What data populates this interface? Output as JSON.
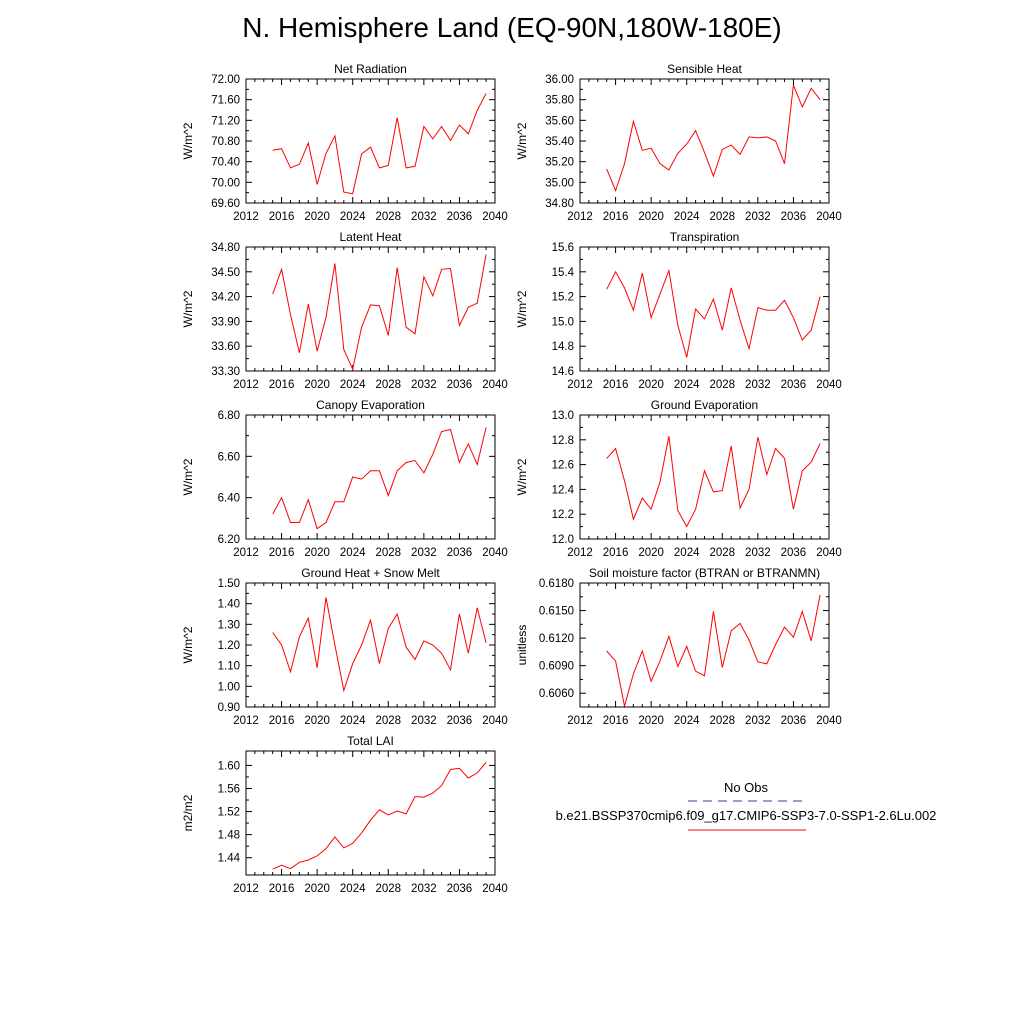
{
  "figure": {
    "title": "N. Hemisphere Land (EQ-90N,180W-180E)"
  },
  "legend": {
    "obs_label": "No Obs",
    "model_label": "b.e21.BSSP370cmip6.f09_g17.CMIP6-SSP3-7.0-SSP1-2.6Lu.002",
    "obs_color": "#3a3aa0",
    "model_color": "#ff0000"
  },
  "chart_data": [
    {
      "type": "line",
      "title": "Net Radiation",
      "ylabel": "W/m^2",
      "xlim": [
        2012,
        2040
      ],
      "ylim": [
        69.6,
        72.0
      ],
      "xticks": [
        "2012",
        "2016",
        "2020",
        "2024",
        "2028",
        "2032",
        "2036",
        "2040"
      ],
      "yticks": [
        "69.60",
        "70.00",
        "70.40",
        "70.80",
        "71.20",
        "71.60",
        "72.00"
      ],
      "x": [
        2015,
        2016,
        2017,
        2018,
        2019,
        2020,
        2021,
        2022,
        2023,
        2024,
        2025,
        2026,
        2027,
        2028,
        2029,
        2030,
        2031,
        2032,
        2033,
        2034,
        2035,
        2036,
        2037,
        2038,
        2039
      ],
      "series": [
        {
          "values": [
            70.62,
            70.65,
            70.28,
            70.35,
            70.76,
            69.96,
            70.56,
            70.9,
            69.81,
            69.78,
            70.55,
            70.68,
            70.28,
            70.33,
            71.25,
            70.28,
            70.31,
            71.08,
            70.84,
            71.08,
            70.81,
            71.11,
            70.94,
            71.39,
            71.72
          ]
        }
      ]
    },
    {
      "type": "line",
      "title": "Sensible Heat",
      "ylabel": "W/m^2",
      "xlim": [
        2012,
        2040
      ],
      "ylim": [
        34.8,
        36.0
      ],
      "xticks": [
        "2012",
        "2016",
        "2020",
        "2024",
        "2028",
        "2032",
        "2036",
        "2040"
      ],
      "yticks": [
        "34.80",
        "35.00",
        "35.20",
        "35.40",
        "35.60",
        "35.80",
        "36.00"
      ],
      "x": [
        2015,
        2016,
        2017,
        2018,
        2019,
        2020,
        2021,
        2022,
        2023,
        2024,
        2025,
        2026,
        2027,
        2028,
        2029,
        2030,
        2031,
        2032,
        2033,
        2034,
        2035,
        2036,
        2037,
        2038,
        2039
      ],
      "series": [
        {
          "values": [
            35.13,
            34.92,
            35.18,
            35.59,
            35.31,
            35.33,
            35.18,
            35.12,
            35.28,
            35.37,
            35.5,
            35.29,
            35.06,
            35.32,
            35.36,
            35.27,
            35.44,
            35.43,
            35.44,
            35.4,
            35.18,
            35.94,
            35.73,
            35.91,
            35.8
          ]
        }
      ]
    },
    {
      "type": "line",
      "title": "Latent Heat",
      "ylabel": "W/m^2",
      "xlim": [
        2012,
        2040
      ],
      "ylim": [
        33.3,
        34.8
      ],
      "xticks": [
        "2012",
        "2016",
        "2020",
        "2024",
        "2028",
        "2032",
        "2036",
        "2040"
      ],
      "yticks": [
        "33.30",
        "33.60",
        "33.90",
        "34.20",
        "34.50",
        "34.80"
      ],
      "x": [
        2015,
        2016,
        2017,
        2018,
        2019,
        2020,
        2021,
        2022,
        2023,
        2024,
        2025,
        2026,
        2027,
        2028,
        2029,
        2030,
        2031,
        2032,
        2033,
        2034,
        2035,
        2036,
        2037,
        2038,
        2039
      ],
      "series": [
        {
          "values": [
            34.23,
            34.53,
            33.98,
            33.52,
            34.11,
            33.54,
            33.95,
            34.6,
            33.56,
            33.32,
            33.83,
            34.1,
            34.09,
            33.73,
            34.55,
            33.83,
            33.75,
            34.44,
            34.21,
            34.53,
            34.54,
            33.85,
            34.07,
            34.12,
            34.71
          ]
        }
      ]
    },
    {
      "type": "line",
      "title": "Transpiration",
      "ylabel": "W/m^2",
      "xlim": [
        2012,
        2040
      ],
      "ylim": [
        14.6,
        15.6
      ],
      "xticks": [
        "2012",
        "2016",
        "2020",
        "2024",
        "2028",
        "2032",
        "2036",
        "2040"
      ],
      "yticks": [
        "14.6",
        "14.8",
        "15.0",
        "15.2",
        "15.4",
        "15.6"
      ],
      "x": [
        2015,
        2016,
        2017,
        2018,
        2019,
        2020,
        2021,
        2022,
        2023,
        2024,
        2025,
        2026,
        2027,
        2028,
        2029,
        2030,
        2031,
        2032,
        2033,
        2034,
        2035,
        2036,
        2037,
        2038,
        2039
      ],
      "series": [
        {
          "values": [
            15.26,
            15.4,
            15.27,
            15.09,
            15.39,
            15.03,
            15.22,
            15.41,
            14.97,
            14.71,
            15.1,
            15.02,
            15.18,
            14.93,
            15.27,
            15.01,
            14.78,
            15.11,
            15.09,
            15.09,
            15.17,
            15.03,
            14.85,
            14.93,
            15.2
          ]
        }
      ]
    },
    {
      "type": "line",
      "title": "Canopy Evaporation",
      "ylabel": "W/m^2",
      "xlim": [
        2012,
        2040
      ],
      "ylim": [
        6.2,
        6.8
      ],
      "xticks": [
        "2012",
        "2016",
        "2020",
        "2024",
        "2028",
        "2032",
        "2036",
        "2040"
      ],
      "yticks": [
        "6.20",
        "6.40",
        "6.60",
        "6.80"
      ],
      "x": [
        2015,
        2016,
        2017,
        2018,
        2019,
        2020,
        2021,
        2022,
        2023,
        2024,
        2025,
        2026,
        2027,
        2028,
        2029,
        2030,
        2031,
        2032,
        2033,
        2034,
        2035,
        2036,
        2037,
        2038,
        2039
      ],
      "series": [
        {
          "values": [
            6.32,
            6.4,
            6.28,
            6.28,
            6.39,
            6.25,
            6.28,
            6.38,
            6.38,
            6.5,
            6.49,
            6.53,
            6.53,
            6.41,
            6.53,
            6.57,
            6.58,
            6.52,
            6.61,
            6.72,
            6.73,
            6.57,
            6.66,
            6.56,
            6.74
          ]
        }
      ]
    },
    {
      "type": "line",
      "title": "Ground Evaporation",
      "ylabel": "W/m^2",
      "xlim": [
        2012,
        2040
      ],
      "ylim": [
        12.0,
        13.0
      ],
      "xticks": [
        "2012",
        "2016",
        "2020",
        "2024",
        "2028",
        "2032",
        "2036",
        "2040"
      ],
      "yticks": [
        "12.0",
        "12.2",
        "12.4",
        "12.6",
        "12.8",
        "13.0"
      ],
      "x": [
        2015,
        2016,
        2017,
        2018,
        2019,
        2020,
        2021,
        2022,
        2023,
        2024,
        2025,
        2026,
        2027,
        2028,
        2029,
        2030,
        2031,
        2032,
        2033,
        2034,
        2035,
        2036,
        2037,
        2038,
        2039
      ],
      "series": [
        {
          "values": [
            12.65,
            12.73,
            12.47,
            12.16,
            12.33,
            12.24,
            12.46,
            12.83,
            12.23,
            12.1,
            12.24,
            12.55,
            12.38,
            12.39,
            12.75,
            12.25,
            12.4,
            12.82,
            12.52,
            12.73,
            12.65,
            12.24,
            12.55,
            12.62,
            12.77
          ]
        }
      ]
    },
    {
      "type": "line",
      "title": "Ground Heat + Snow Melt",
      "ylabel": "W/m^2",
      "xlim": [
        2012,
        2040
      ],
      "ylim": [
        0.9,
        1.5
      ],
      "xticks": [
        "2012",
        "2016",
        "2020",
        "2024",
        "2028",
        "2032",
        "2036",
        "2040"
      ],
      "yticks": [
        "0.90",
        "1.00",
        "1.10",
        "1.20",
        "1.30",
        "1.40",
        "1.50"
      ],
      "x": [
        2015,
        2016,
        2017,
        2018,
        2019,
        2020,
        2021,
        2022,
        2023,
        2024,
        2025,
        2026,
        2027,
        2028,
        2029,
        2030,
        2031,
        2032,
        2033,
        2034,
        2035,
        2036,
        2037,
        2038,
        2039
      ],
      "series": [
        {
          "values": [
            1.26,
            1.2,
            1.07,
            1.24,
            1.33,
            1.09,
            1.43,
            1.2,
            0.98,
            1.11,
            1.2,
            1.32,
            1.11,
            1.28,
            1.35,
            1.19,
            1.13,
            1.22,
            1.2,
            1.16,
            1.08,
            1.35,
            1.16,
            1.38,
            1.21
          ]
        }
      ]
    },
    {
      "type": "line",
      "title": "Soil moisture factor (BTRAN or BTRANMN)",
      "ylabel": "unitless",
      "xlim": [
        2012,
        2040
      ],
      "ylim": [
        0.6045,
        0.618
      ],
      "xticks": [
        "2012",
        "2016",
        "2020",
        "2024",
        "2028",
        "2032",
        "2036",
        "2040"
      ],
      "yticks": [
        "0.6060",
        "0.6090",
        "0.6120",
        "0.6150",
        "0.6180"
      ],
      "x": [
        2015,
        2016,
        2017,
        2018,
        2019,
        2020,
        2021,
        2022,
        2023,
        2024,
        2025,
        2026,
        2027,
        2028,
        2029,
        2030,
        2031,
        2032,
        2033,
        2034,
        2035,
        2036,
        2037,
        2038,
        2039
      ],
      "series": [
        {
          "values": [
            0.6106,
            0.6095,
            0.6046,
            0.6081,
            0.6106,
            0.6073,
            0.6095,
            0.6122,
            0.6089,
            0.6111,
            0.6084,
            0.6079,
            0.6149,
            0.6088,
            0.6128,
            0.6136,
            0.6118,
            0.6094,
            0.6092,
            0.6113,
            0.6132,
            0.6121,
            0.6149,
            0.6117,
            0.6167
          ]
        }
      ]
    },
    {
      "type": "line",
      "title": "Total LAI",
      "ylabel": "m2/m2",
      "xlim": [
        2012,
        2040
      ],
      "ylim": [
        1.41,
        1.625
      ],
      "xticks": [
        "2012",
        "2016",
        "2020",
        "2024",
        "2028",
        "2032",
        "2036",
        "2040"
      ],
      "yticks": [
        "1.44",
        "1.48",
        "1.52",
        "1.56",
        "1.60"
      ],
      "x": [
        2015,
        2016,
        2017,
        2018,
        2019,
        2020,
        2021,
        2022,
        2023,
        2024,
        2025,
        2026,
        2027,
        2028,
        2029,
        2030,
        2031,
        2032,
        2033,
        2034,
        2035,
        2036,
        2037,
        2038,
        2039
      ],
      "series": [
        {
          "values": [
            1.42,
            1.427,
            1.421,
            1.432,
            1.436,
            1.443,
            1.456,
            1.476,
            1.457,
            1.465,
            1.483,
            1.505,
            1.523,
            1.514,
            1.521,
            1.516,
            1.546,
            1.545,
            1.552,
            1.565,
            1.593,
            1.595,
            1.578,
            1.587,
            1.605
          ]
        }
      ]
    }
  ]
}
